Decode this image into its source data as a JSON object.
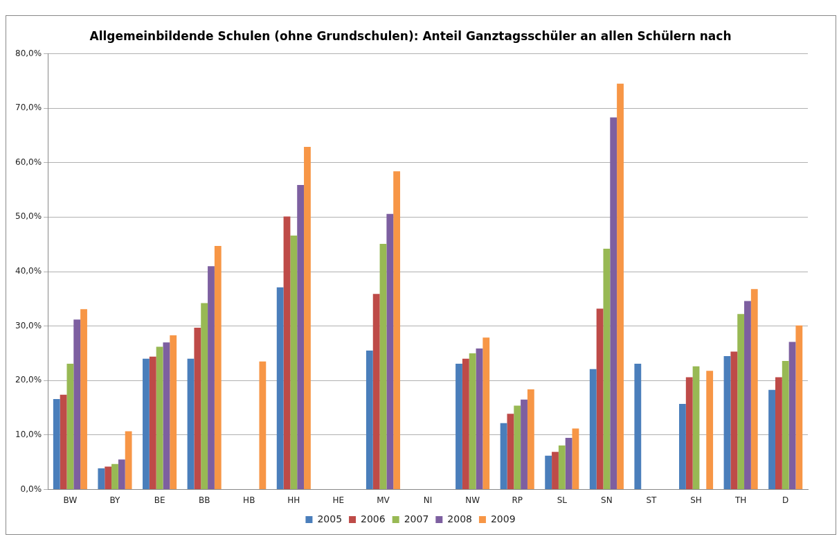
{
  "chart_data": {
    "type": "bar",
    "title": "Allgemeinbildende Schulen (ohne Grundschulen): Anteil Ganztagsschüler an allen Schülern nach",
    "categories": [
      "BW",
      "BY",
      "BE",
      "BB",
      "HB",
      "HH",
      "HE",
      "MV",
      "NI",
      "NW",
      "RP",
      "SL",
      "SN",
      "ST",
      "SH",
      "TH",
      "D"
    ],
    "series": [
      {
        "name": "2005",
        "color": "#4a7ebb",
        "values": [
          16.6,
          3.9,
          24.0,
          24.0,
          null,
          37.1,
          null,
          25.5,
          null,
          23.1,
          12.2,
          6.2,
          22.1,
          23.1,
          15.7,
          24.5,
          18.3
        ]
      },
      {
        "name": "2006",
        "color": "#be4b48",
        "values": [
          17.4,
          4.2,
          24.4,
          29.7,
          null,
          50.1,
          null,
          35.9,
          null,
          24.0,
          13.9,
          6.9,
          33.2,
          null,
          20.6,
          25.3,
          20.6
        ]
      },
      {
        "name": "2007",
        "color": "#98b954",
        "values": [
          23.1,
          4.7,
          26.2,
          34.2,
          null,
          46.6,
          null,
          45.1,
          null,
          25.0,
          15.4,
          8.1,
          44.2,
          null,
          22.6,
          32.2,
          23.6
        ]
      },
      {
        "name": "2008",
        "color": "#7d5fa0",
        "values": [
          31.2,
          5.5,
          27.0,
          41.0,
          null,
          55.9,
          null,
          50.6,
          null,
          25.9,
          16.5,
          9.5,
          68.3,
          null,
          null,
          34.6,
          27.1
        ]
      },
      {
        "name": "2009",
        "color": "#f79646",
        "values": [
          33.1,
          10.7,
          28.3,
          44.7,
          23.5,
          62.9,
          null,
          58.4,
          null,
          27.9,
          18.4,
          11.2,
          74.5,
          null,
          21.8,
          36.8,
          30.1
        ]
      }
    ],
    "ylim": [
      0,
      80
    ],
    "yticks": [
      {
        "value": 0,
        "label": "0,0%"
      },
      {
        "value": 10,
        "label": "10,0%"
      },
      {
        "value": 20,
        "label": "20,0%"
      },
      {
        "value": 30,
        "label": "30,0%"
      },
      {
        "value": 40,
        "label": "40,0%"
      },
      {
        "value": 50,
        "label": "50,0%"
      },
      {
        "value": 60,
        "label": "60,0%"
      },
      {
        "value": 70,
        "label": "70,0%"
      },
      {
        "value": 80,
        "label": "80,0%"
      }
    ],
    "grid": "y",
    "legend": "bottom"
  }
}
